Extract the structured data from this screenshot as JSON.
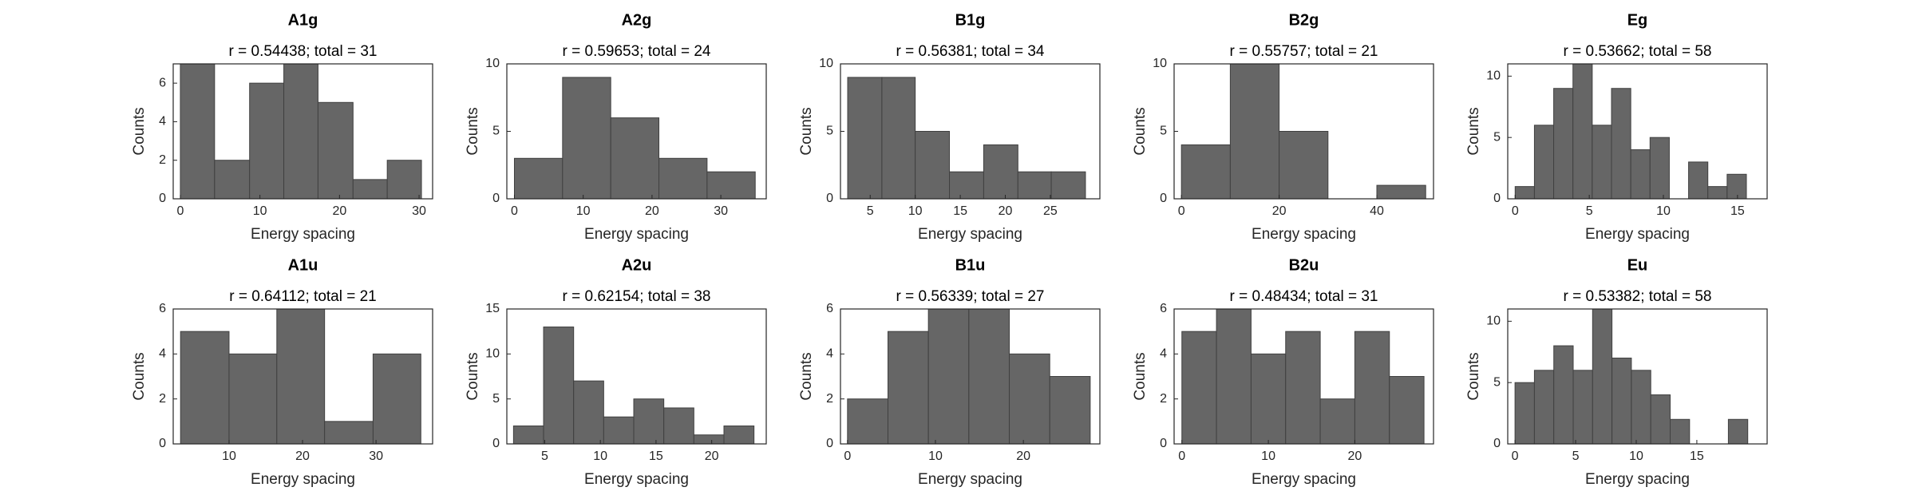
{
  "chart_data": [
    {
      "type": "histogram",
      "title": "A1g",
      "subtitle": "r = 0.54438; total = 31",
      "x_label": "Energy spacing",
      "y_label": "Counts",
      "color": "#666666",
      "bins": [
        0,
        4.3,
        8.7,
        13,
        17.3,
        21.7,
        26,
        30.3
      ],
      "values": [
        7,
        2,
        6,
        7,
        5,
        1,
        2
      ],
      "xlim": [
        -0.9,
        31.7
      ],
      "xticks": [
        0,
        10,
        20,
        30
      ],
      "ylim": [
        0,
        7
      ],
      "yticks": [
        0,
        2,
        4,
        6
      ]
    },
    {
      "type": "histogram",
      "title": "A2g",
      "subtitle": "r = 0.59653; total = 24",
      "x_label": "Energy spacing",
      "y_label": "Counts",
      "color": "#666666",
      "bins": [
        0,
        7,
        14,
        21,
        28,
        35
      ],
      "values": [
        3,
        9,
        6,
        3,
        2
      ],
      "xlim": [
        -1.1,
        36.6
      ],
      "xticks": [
        0,
        10,
        20,
        30
      ],
      "ylim": [
        0,
        10
      ],
      "yticks": [
        0,
        5,
        10
      ]
    },
    {
      "type": "histogram",
      "title": "B1g",
      "subtitle": "r = 0.56381; total = 34",
      "x_label": "Energy spacing",
      "y_label": "Counts",
      "color": "#666666",
      "bins": [
        2.5,
        6.3,
        10,
        13.8,
        17.6,
        21.4,
        25.1,
        28.9
      ],
      "values": [
        9,
        9,
        5,
        2,
        4,
        2,
        2
      ],
      "xlim": [
        1.7,
        30.5
      ],
      "xticks": [
        5,
        10,
        15,
        20,
        25
      ],
      "ylim": [
        0,
        10
      ],
      "yticks": [
        0,
        5,
        10
      ]
    },
    {
      "type": "histogram",
      "title": "B2g",
      "subtitle": "r = 0.55757; total = 21",
      "x_label": "Energy spacing",
      "y_label": "Counts",
      "color": "#666666",
      "bins": [
        0,
        10,
        20,
        30,
        40,
        50
      ],
      "values": [
        4,
        10,
        5,
        0,
        1
      ],
      "xlim": [
        -1.5,
        51.6
      ],
      "xticks": [
        0,
        20,
        40
      ],
      "ylim": [
        0,
        10
      ],
      "yticks": [
        0,
        5,
        10
      ]
    },
    {
      "type": "histogram",
      "title": "Eg",
      "subtitle": "r = 0.53662; total = 58",
      "x_label": "Energy spacing",
      "y_label": "Counts",
      "color": "#666666",
      "bins": [
        0,
        1.3,
        2.6,
        3.9,
        5.2,
        6.5,
        7.8,
        9.1,
        10.4,
        11.7,
        13,
        14.3,
        15.6
      ],
      "values": [
        1,
        6,
        9,
        11,
        6,
        9,
        4,
        5,
        0,
        3,
        1,
        2
      ],
      "xlim": [
        -0.5,
        17
      ],
      "xticks": [
        0,
        5,
        10,
        15
      ],
      "ylim": [
        0,
        11
      ],
      "yticks": [
        0,
        5,
        10
      ]
    },
    {
      "type": "histogram",
      "title": "A1u",
      "subtitle": "r = 0.64112; total = 21",
      "x_label": "Energy spacing",
      "y_label": "Counts",
      "color": "#666666",
      "bins": [
        3.4,
        10,
        16.5,
        23,
        29.6,
        36.1
      ],
      "values": [
        5,
        4,
        6,
        1,
        4
      ],
      "xlim": [
        2.4,
        37.7
      ],
      "xticks": [
        10,
        20,
        30
      ],
      "ylim": [
        0,
        6
      ],
      "yticks": [
        0,
        2,
        4,
        6
      ]
    },
    {
      "type": "histogram",
      "title": "A2u",
      "subtitle": "r = 0.62154; total = 38",
      "x_label": "Energy spacing",
      "y_label": "Counts",
      "color": "#666666",
      "bins": [
        2.2,
        4.9,
        7.6,
        10.3,
        13,
        15.7,
        18.4,
        21.1,
        23.8
      ],
      "values": [
        2,
        13,
        7,
        3,
        5,
        4,
        1,
        2
      ],
      "xlim": [
        1.6,
        24.9
      ],
      "xticks": [
        5,
        10,
        15,
        20
      ],
      "ylim": [
        0,
        15
      ],
      "yticks": [
        0,
        5,
        10,
        15
      ]
    },
    {
      "type": "histogram",
      "title": "B1u",
      "subtitle": "r = 0.56339; total = 27",
      "x_label": "Energy spacing",
      "y_label": "Counts",
      "color": "#666666",
      "bins": [
        0,
        4.6,
        9.2,
        13.8,
        18.4,
        23,
        27.6
      ],
      "values": [
        2,
        5,
        6,
        6,
        4,
        3
      ],
      "xlim": [
        -0.8,
        28.7
      ],
      "xticks": [
        0,
        10,
        20
      ],
      "ylim": [
        0,
        6
      ],
      "yticks": [
        0,
        2,
        4,
        6
      ]
    },
    {
      "type": "histogram",
      "title": "B2u",
      "subtitle": "r = 0.48434; total = 31",
      "x_label": "Energy spacing",
      "y_label": "Counts",
      "color": "#666666",
      "bins": [
        0,
        4,
        8,
        12,
        16,
        20,
        24,
        28
      ],
      "values": [
        5,
        6,
        4,
        5,
        2,
        5,
        3
      ],
      "xlim": [
        -0.9,
        29.1
      ],
      "xticks": [
        0,
        10,
        20
      ],
      "ylim": [
        0,
        6
      ],
      "yticks": [
        0,
        2,
        4,
        6
      ]
    },
    {
      "type": "histogram",
      "title": "Eu",
      "subtitle": "r = 0.53382; total = 58",
      "x_label": "Energy spacing",
      "y_label": "Counts",
      "color": "#666666",
      "bins": [
        0,
        1.6,
        3.2,
        4.8,
        6.4,
        8,
        9.6,
        11.2,
        12.8,
        14.4,
        16,
        17.6,
        19.2
      ],
      "values": [
        5,
        6,
        8,
        6,
        11,
        7,
        6,
        4,
        2,
        0,
        0,
        2
      ],
      "xlim": [
        -0.6,
        20.8
      ],
      "xticks": [
        0,
        5,
        10,
        15
      ],
      "ylim": [
        0,
        11
      ],
      "yticks": [
        0,
        5,
        10
      ]
    }
  ]
}
